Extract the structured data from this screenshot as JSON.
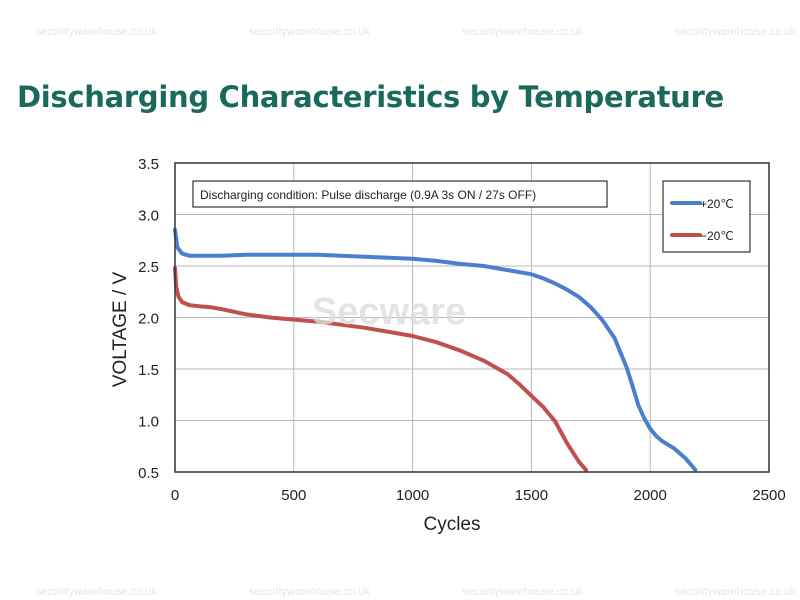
{
  "header": {
    "title": "Discharging Characteristics by Temperature"
  },
  "watermarks": {
    "site": "securitywarehouse.co.uk",
    "center": "Secware"
  },
  "chart_data": {
    "type": "line",
    "xlabel": "Cycles",
    "ylabel": "VOLTAGE / V",
    "xlim": [
      0,
      2500
    ],
    "ylim": [
      0.5,
      3.5
    ],
    "xticks": [
      "0",
      "500",
      "1000",
      "1500",
      "2000",
      "2500"
    ],
    "yticks": [
      "3.5",
      "3.0",
      "2.5",
      "2.0",
      "1.5",
      "1.0",
      "0.5"
    ],
    "grid": true,
    "legend_position": "top-right",
    "annotation": "Discharging condition: Pulse discharge (0.9A 3s ON / 27s OFF)",
    "series": [
      {
        "name": "+20℃",
        "color": "#4a7fcc",
        "x": [
          0,
          10,
          30,
          60,
          100,
          200,
          300,
          400,
          500,
          600,
          700,
          800,
          900,
          1000,
          1100,
          1200,
          1300,
          1400,
          1500,
          1550,
          1600,
          1650,
          1700,
          1750,
          1800,
          1850,
          1900,
          1925,
          1950,
          1975,
          2000,
          2025,
          2050,
          2100,
          2150,
          2190
        ],
        "y": [
          2.85,
          2.68,
          2.62,
          2.6,
          2.6,
          2.6,
          2.61,
          2.61,
          2.61,
          2.61,
          2.6,
          2.59,
          2.58,
          2.57,
          2.55,
          2.52,
          2.5,
          2.46,
          2.42,
          2.38,
          2.33,
          2.27,
          2.2,
          2.1,
          1.97,
          1.8,
          1.52,
          1.34,
          1.15,
          1.02,
          0.92,
          0.85,
          0.8,
          0.73,
          0.63,
          0.52
        ]
      },
      {
        "name": "−20℃",
        "color": "#c0504d",
        "x": [
          0,
          5,
          15,
          30,
          60,
          100,
          150,
          200,
          300,
          400,
          500,
          600,
          700,
          800,
          900,
          1000,
          1100,
          1200,
          1300,
          1400,
          1450,
          1500,
          1550,
          1600,
          1650,
          1700,
          1730
        ],
        "y": [
          2.48,
          2.3,
          2.2,
          2.15,
          2.12,
          2.11,
          2.1,
          2.08,
          2.03,
          2.0,
          1.98,
          1.96,
          1.93,
          1.9,
          1.86,
          1.82,
          1.76,
          1.68,
          1.58,
          1.45,
          1.35,
          1.24,
          1.13,
          0.99,
          0.78,
          0.6,
          0.52
        ]
      }
    ]
  }
}
